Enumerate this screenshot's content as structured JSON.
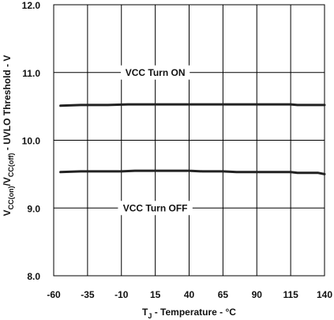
{
  "chart_data": {
    "type": "line",
    "title": "",
    "xlabel": "T_J - Temperature - °C",
    "xlabel_parts": {
      "main": "T",
      "sub": "J",
      "rest": " - Temperature - °C"
    },
    "ylabel": "V_CC(on)/V_CC(off) - UVLO Threshold - V",
    "ylabel_parts": {
      "a": "V",
      "a_sub": "CC(on)",
      "mid": "/V",
      "b_sub": "CC(off)",
      "rest": " - UVLO Threshold - V"
    },
    "xlim": [
      -60,
      140
    ],
    "ylim": [
      8.0,
      12.0
    ],
    "x_ticks": [
      -60,
      -35,
      -10,
      15,
      40,
      65,
      90,
      115,
      140
    ],
    "y_ticks": [
      8.0,
      9.0,
      10.0,
      11.0,
      12.0
    ],
    "grid": true,
    "series": [
      {
        "name": "VCC Turn ON",
        "x": [
          -55,
          -40,
          -20,
          -5,
          10,
          40,
          65,
          90,
          115,
          120,
          140
        ],
        "y": [
          10.51,
          10.52,
          10.52,
          10.53,
          10.53,
          10.53,
          10.53,
          10.53,
          10.53,
          10.52,
          10.52
        ]
      },
      {
        "name": "VCC Turn OFF",
        "x": [
          -55,
          -40,
          -10,
          0,
          40,
          50,
          65,
          75,
          90,
          115,
          120,
          135,
          140
        ],
        "y": [
          9.53,
          9.54,
          9.54,
          9.55,
          9.55,
          9.54,
          9.54,
          9.53,
          9.53,
          9.53,
          9.52,
          9.52,
          9.5
        ]
      }
    ],
    "annotations": [
      {
        "text": "VCC Turn ON",
        "x": 15,
        "y": 11.0
      },
      {
        "text": "VCC Turn OFF",
        "x": 15,
        "y": 9.0
      }
    ]
  }
}
